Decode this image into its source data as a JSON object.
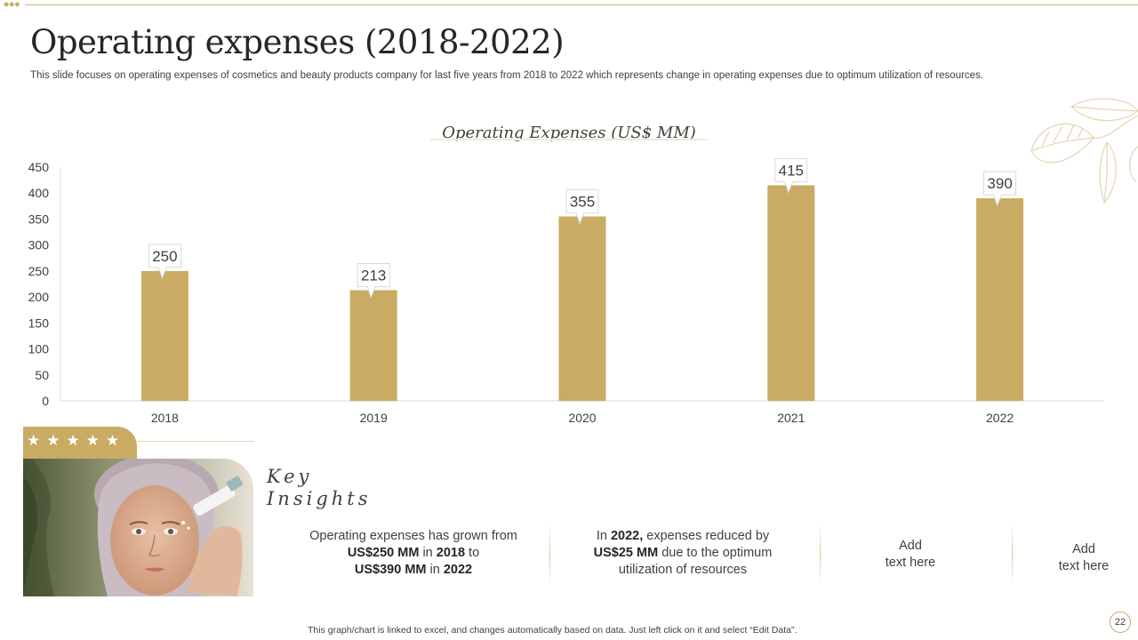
{
  "slide": {
    "title": "Operating expenses (2018-2022)",
    "subtitle": "This slide focuses on operating expenses  of cosmetics and beauty products company for last five years from 2018  to 2022 which represents  change in operating expenses  due to optimum utilization of resources.",
    "footer": "This graph/chart is linked to excel, and changes automatically based on data. Just left click on it and select “Edit Data”.",
    "page_number": "22"
  },
  "colors": {
    "accent": "#c9ab63",
    "text": "#404040",
    "axis": "#d9d9d9"
  },
  "chart_data": {
    "type": "bar",
    "title": "Operating Expenses (US$ MM)",
    "categories": [
      "2018",
      "2019",
      "2020",
      "2021",
      "2022"
    ],
    "values": [
      250,
      213,
      355,
      415,
      390
    ],
    "ylim": [
      0,
      450
    ],
    "yticks": [
      0,
      50,
      100,
      150,
      200,
      250,
      300,
      350,
      400,
      450
    ],
    "xlabel": "",
    "ylabel": "",
    "grid": false,
    "data_labels": true
  },
  "insights": {
    "heading": "Key Insights",
    "stars": "★★★★★",
    "photo_icon": "woman-with-skincare-photo",
    "item1": {
      "line1": "Operating expenses has grown from",
      "amount_from": "US$250 MM",
      "in1": " in ",
      "year_from": "2018",
      "to": " to",
      "amount_to": "US$390 MM",
      "in2": " in ",
      "year_to": "2022"
    },
    "item2": {
      "in": "In ",
      "year": "2022,",
      "text1": " expenses reduced by",
      "amount": "US$25 MM",
      "text2": " due to the optimum",
      "line3": "utilization of resources"
    },
    "item3": {
      "line1": "Add",
      "line2": "text here"
    },
    "item4": {
      "line1": "Add",
      "line2": "text here"
    }
  }
}
